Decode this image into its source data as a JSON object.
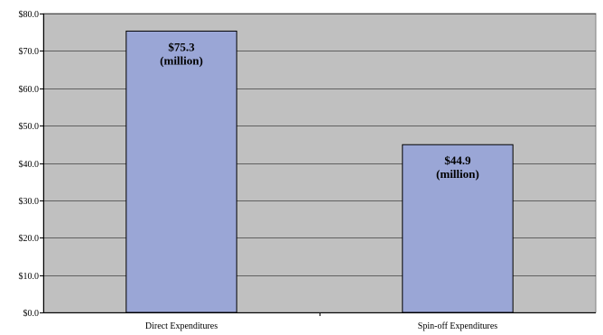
{
  "chart_data": {
    "type": "bar",
    "categories": [
      "Direct Expenditures",
      "Spin-off Expenditures"
    ],
    "values": [
      75.3,
      44.9
    ],
    "data_labels": [
      [
        "$75.3",
        "(million)"
      ],
      [
        "$44.9",
        "(million)"
      ]
    ],
    "ylim": [
      0,
      80
    ],
    "yticks": [
      0,
      10,
      20,
      30,
      40,
      50,
      60,
      70,
      80
    ],
    "ytick_labels": [
      "$0.0",
      "$10.0",
      "$20.0",
      "$30.0",
      "$40.0",
      "$50.0",
      "$60.0",
      "$70.0",
      "$80.0"
    ],
    "grid": true,
    "legend": "none",
    "colors": {
      "plot_background": "#c0c0c0",
      "bar_fill": "#9aa6d6",
      "bar_stroke": "#000000",
      "gridline": "#000000"
    }
  }
}
